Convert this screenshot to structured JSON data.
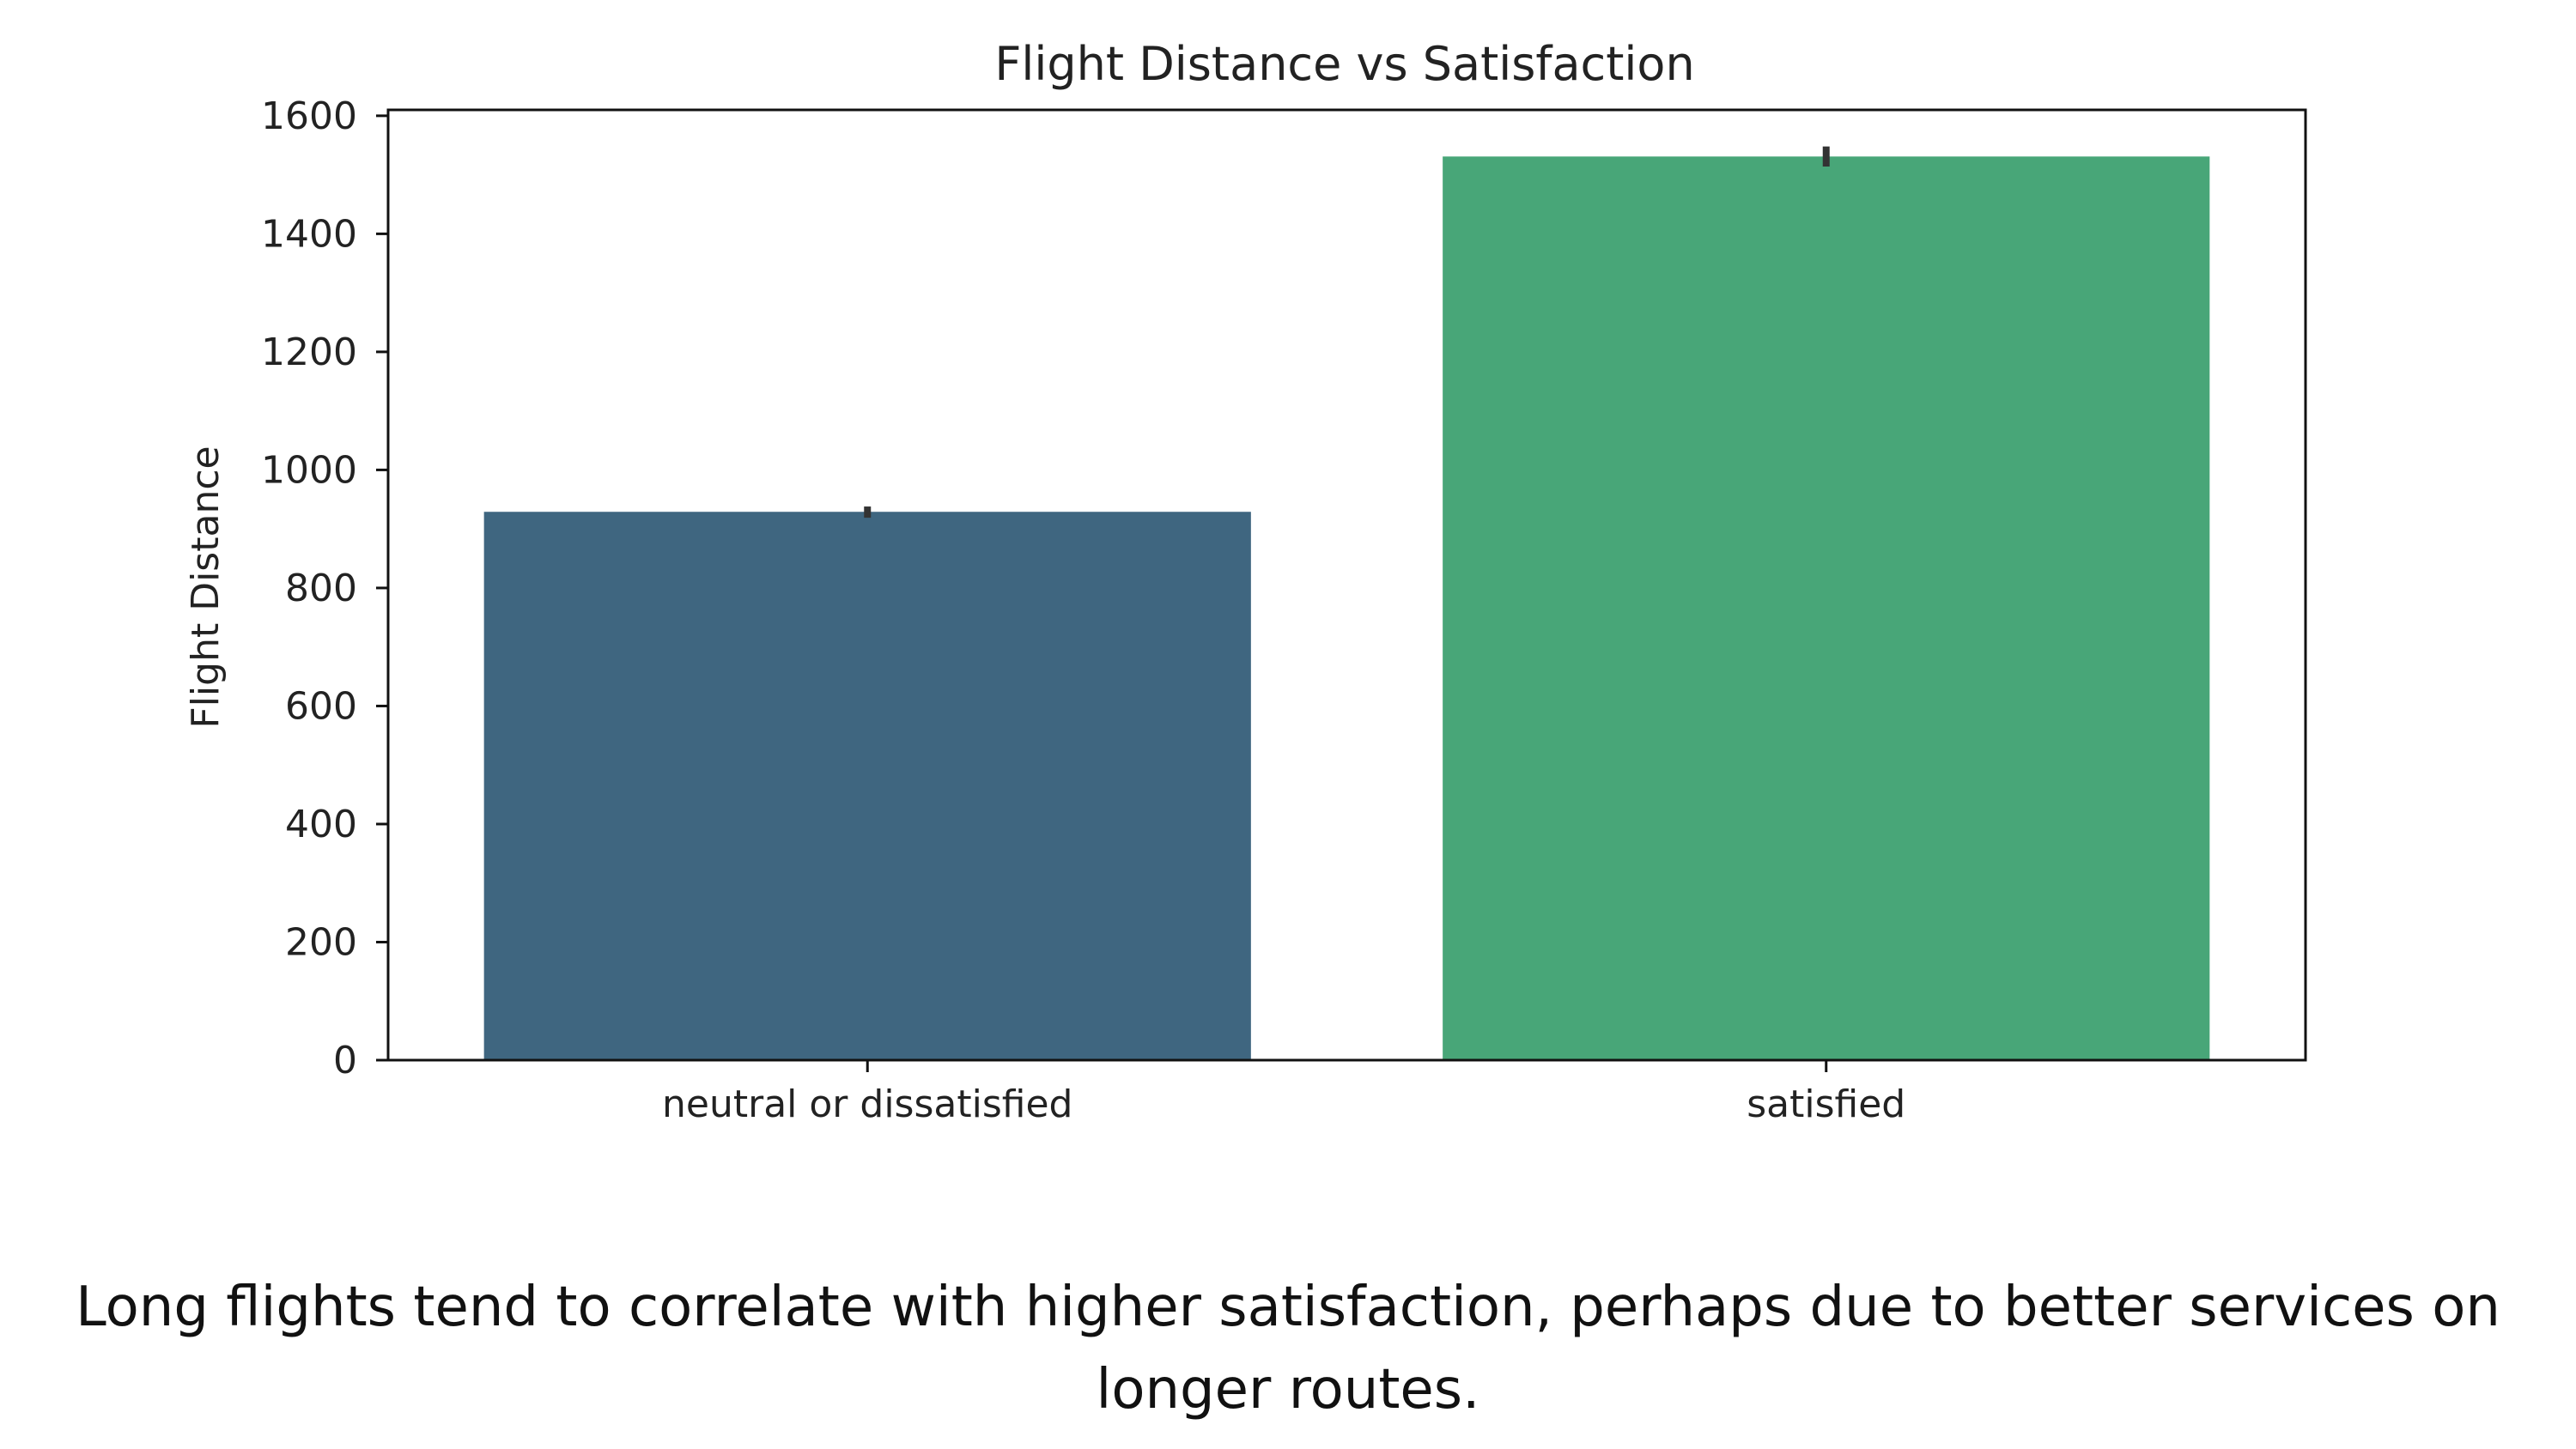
{
  "chart_data": {
    "type": "bar",
    "title": "Flight Distance vs Satisfaction",
    "xlabel": "",
    "ylabel": "Flight Distance",
    "categories": [
      "neutral or dissatisfied",
      "satisfied"
    ],
    "values": [
      929,
      1531
    ],
    "error_low": [
      919,
      1514
    ],
    "error_high": [
      938,
      1548
    ],
    "colors": [
      "#3f6680",
      "#48a678"
    ],
    "ylim": [
      0,
      1610
    ],
    "yticks": [
      0,
      200,
      400,
      600,
      800,
      1000,
      1200,
      1400,
      1600
    ],
    "grid": false,
    "legend": "none"
  },
  "caption": {
    "line1": "Long flights tend to correlate with higher satisfaction, perhaps due to better services on",
    "line2": "longer routes."
  }
}
